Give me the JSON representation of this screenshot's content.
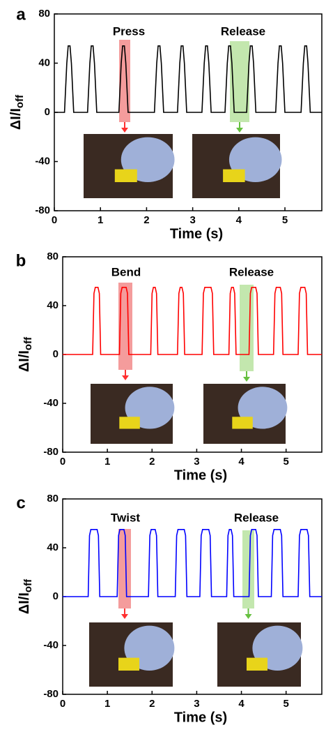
{
  "chart_data": [
    {
      "type": "line",
      "panel": "a",
      "annotations": [
        {
          "text": "Press"
        },
        {
          "text": "Release"
        }
      ],
      "xlabel": "Time (s)",
      "ylabel": "ΔI/I",
      "ylabel_subscript": "off",
      "color": "#000000",
      "xlim": [
        0,
        5.8
      ],
      "ylim": [
        -80,
        80
      ],
      "xticks": [
        0,
        1,
        2,
        3,
        4,
        5
      ],
      "yticks": [
        -80,
        -40,
        0,
        40,
        80
      ],
      "x": [
        0,
        0.22,
        0.27,
        0.3,
        0.34,
        0.37,
        0.42,
        0.72,
        0.77,
        0.8,
        0.84,
        0.87,
        0.92,
        1.4,
        1.45,
        1.48,
        1.52,
        1.55,
        1.6,
        2.17,
        2.22,
        2.25,
        2.29,
        2.32,
        2.37,
        2.67,
        2.72,
        2.75,
        2.79,
        2.82,
        2.87,
        3.2,
        3.25,
        3.28,
        3.32,
        3.35,
        3.4,
        3.7,
        3.75,
        3.78,
        3.82,
        3.85,
        3.9,
        4.17,
        4.22,
        4.25,
        4.29,
        4.32,
        4.37,
        4.8,
        4.85,
        4.88,
        4.92,
        4.95,
        5.0,
        5.35,
        5.4,
        5.43,
        5.47,
        5.5,
        5.55,
        5.8
      ],
      "values": [
        0,
        0,
        40,
        54,
        54,
        40,
        0,
        0,
        40,
        54,
        54,
        40,
        0,
        0,
        40,
        54,
        54,
        40,
        0,
        0,
        40,
        54,
        54,
        40,
        0,
        0,
        40,
        54,
        54,
        40,
        0,
        0,
        40,
        54,
        54,
        40,
        0,
        0,
        40,
        54,
        54,
        40,
        0,
        0,
        40,
        54,
        54,
        40,
        0,
        0,
        40,
        54,
        54,
        40,
        0,
        0,
        40,
        54,
        54,
        40,
        0,
        0
      ]
    },
    {
      "type": "line",
      "panel": "b",
      "annotations": [
        {
          "text": "Bend"
        },
        {
          "text": "Release"
        }
      ],
      "xlabel": "Time (s)",
      "ylabel": "ΔI/I",
      "ylabel_subscript": "off",
      "color": "#ff0000",
      "xlim": [
        0,
        5.8
      ],
      "ylim": [
        -80,
        80
      ],
      "xticks": [
        0,
        1,
        2,
        3,
        4,
        5
      ],
      "yticks": [
        -80,
        -40,
        0,
        40,
        80
      ],
      "x": [
        0,
        0.67,
        0.7,
        0.73,
        0.79,
        0.82,
        0.85,
        1.27,
        1.3,
        1.33,
        1.42,
        1.45,
        1.48,
        1.97,
        2.0,
        2.03,
        2.07,
        2.1,
        2.13,
        2.57,
        2.6,
        2.63,
        2.67,
        2.7,
        2.73,
        3.12,
        3.15,
        3.18,
        3.32,
        3.35,
        3.38,
        3.72,
        3.75,
        3.78,
        3.82,
        3.85,
        3.88,
        4.17,
        4.2,
        4.23,
        4.32,
        4.35,
        4.38,
        4.72,
        4.75,
        4.78,
        4.87,
        4.9,
        4.93,
        5.27,
        5.3,
        5.33,
        5.42,
        5.45,
        5.48,
        5.8
      ],
      "values": [
        0,
        0,
        50,
        55,
        55,
        50,
        0,
        0,
        50,
        55,
        55,
        50,
        0,
        0,
        50,
        55,
        55,
        50,
        0,
        0,
        50,
        55,
        55,
        50,
        0,
        0,
        50,
        55,
        55,
        50,
        0,
        0,
        50,
        55,
        55,
        50,
        0,
        0,
        50,
        55,
        55,
        50,
        0,
        0,
        50,
        55,
        55,
        50,
        0,
        0,
        50,
        55,
        55,
        50,
        0,
        0
      ]
    },
    {
      "type": "line",
      "panel": "c",
      "annotations": [
        {
          "text": "Twist"
        },
        {
          "text": "Release"
        }
      ],
      "xlabel": "Time (s)",
      "ylabel": "ΔI/I",
      "ylabel_subscript": "off",
      "color": "#0000ff",
      "xlim": [
        0,
        5.8
      ],
      "ylim": [
        -80,
        80
      ],
      "xticks": [
        0,
        1,
        2,
        3,
        4,
        5
      ],
      "yticks": [
        -80,
        -40,
        0,
        40,
        80
      ],
      "x": [
        0,
        0.57,
        0.6,
        0.63,
        0.77,
        0.8,
        0.83,
        1.22,
        1.25,
        1.28,
        1.37,
        1.4,
        1.43,
        1.92,
        1.95,
        1.98,
        2.07,
        2.1,
        2.13,
        2.52,
        2.55,
        2.58,
        2.72,
        2.75,
        2.78,
        3.07,
        3.1,
        3.13,
        3.27,
        3.3,
        3.33,
        3.67,
        3.7,
        3.73,
        3.77,
        3.8,
        3.83,
        4.17,
        4.2,
        4.23,
        4.32,
        4.35,
        4.38,
        4.67,
        4.7,
        4.73,
        4.87,
        4.9,
        4.93,
        5.27,
        5.3,
        5.33,
        5.47,
        5.5,
        5.53,
        5.8
      ],
      "values": [
        0,
        0,
        50,
        55,
        55,
        50,
        0,
        0,
        50,
        55,
        55,
        50,
        0,
        0,
        50,
        55,
        55,
        50,
        0,
        0,
        50,
        55,
        55,
        50,
        0,
        0,
        50,
        55,
        55,
        50,
        0,
        0,
        50,
        55,
        55,
        50,
        0,
        0,
        50,
        55,
        55,
        50,
        0,
        0,
        50,
        55,
        55,
        50,
        0,
        0,
        50,
        55,
        55,
        50,
        0,
        0
      ]
    }
  ]
}
